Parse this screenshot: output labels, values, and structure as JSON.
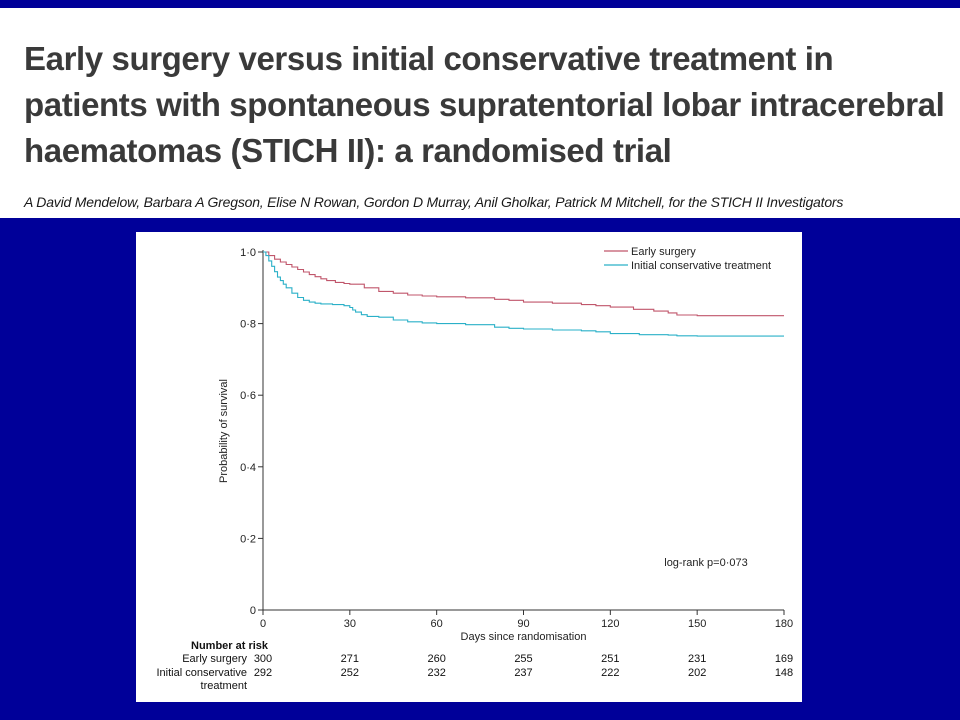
{
  "slide": {
    "title": "Early surgery versus initial conservative treatment in patients with spontaneous supratentorial lobar intracerebral haematomas (STICH II): a randomised trial",
    "authors": "A David Mendelow, Barbara A Gregson, Elise N Rowan, Gordon D Murray, Anil Gholkar, Patrick M Mitchell, for the STICH II Investigators",
    "background_color": "#000099"
  },
  "chart_data": {
    "type": "line",
    "title": "",
    "xlabel": "Days since randomisation",
    "ylabel": "Probability of survival",
    "xlim": [
      0,
      180
    ],
    "ylim": [
      0,
      1.0
    ],
    "x_ticks": [
      0,
      30,
      60,
      90,
      120,
      150,
      180
    ],
    "x_tick_labels": [
      "0",
      "30",
      "60",
      "90",
      "120",
      "150",
      "180"
    ],
    "y_ticks": [
      0,
      0.2,
      0.4,
      0.6,
      0.8,
      1.0
    ],
    "y_tick_labels": [
      "0",
      "0·2",
      "0·4",
      "0·6",
      "0·8",
      "1·0"
    ],
    "grid": false,
    "legend_position": "top-right",
    "annotation": "log-rank p=0·073",
    "series": [
      {
        "name": "Early surgery",
        "color": "#c0566b",
        "step": true,
        "x": [
          0,
          2,
          4,
          6,
          8,
          10,
          12,
          14,
          16,
          18,
          20,
          22,
          25,
          28,
          30,
          35,
          40,
          45,
          50,
          55,
          60,
          70,
          80,
          85,
          90,
          100,
          110,
          115,
          120,
          128,
          135,
          140,
          143,
          150,
          160,
          170,
          180
        ],
        "y": [
          1.0,
          0.99,
          0.98,
          0.972,
          0.965,
          0.958,
          0.951,
          0.944,
          0.937,
          0.931,
          0.925,
          0.92,
          0.915,
          0.912,
          0.91,
          0.9,
          0.89,
          0.885,
          0.88,
          0.877,
          0.875,
          0.872,
          0.868,
          0.865,
          0.86,
          0.857,
          0.853,
          0.85,
          0.846,
          0.84,
          0.835,
          0.83,
          0.824,
          0.822,
          0.822,
          0.822,
          0.822
        ]
      },
      {
        "name": "Initial conservative treatment",
        "color": "#2ab0c8",
        "step": true,
        "x": [
          0,
          1,
          2,
          3,
          4,
          5,
          6,
          7,
          8,
          10,
          12,
          14,
          16,
          18,
          20,
          24,
          28,
          30,
          31,
          32,
          34,
          36,
          40,
          45,
          50,
          55,
          60,
          70,
          80,
          85,
          90,
          100,
          110,
          115,
          120,
          130,
          140,
          143,
          150,
          160,
          170,
          180
        ],
        "y": [
          1.0,
          0.99,
          0.975,
          0.96,
          0.945,
          0.93,
          0.92,
          0.91,
          0.9,
          0.885,
          0.873,
          0.865,
          0.86,
          0.857,
          0.855,
          0.853,
          0.85,
          0.845,
          0.838,
          0.832,
          0.825,
          0.82,
          0.818,
          0.81,
          0.805,
          0.802,
          0.8,
          0.797,
          0.79,
          0.787,
          0.785,
          0.782,
          0.78,
          0.777,
          0.772,
          0.769,
          0.768,
          0.766,
          0.765,
          0.765,
          0.765,
          0.765
        ]
      }
    ],
    "risk_table": {
      "heading": "Number at risk",
      "timepoints": [
        0,
        30,
        60,
        90,
        120,
        150,
        180
      ],
      "rows": [
        {
          "label": [
            "Early surgery"
          ],
          "values": [
            "300",
            "271",
            "260",
            "255",
            "251",
            "231",
            "169"
          ]
        },
        {
          "label": [
            "Initial conservative",
            "treatment"
          ],
          "values": [
            "292",
            "252",
            "232",
            "237",
            "222",
            "202",
            "148"
          ]
        }
      ]
    }
  }
}
